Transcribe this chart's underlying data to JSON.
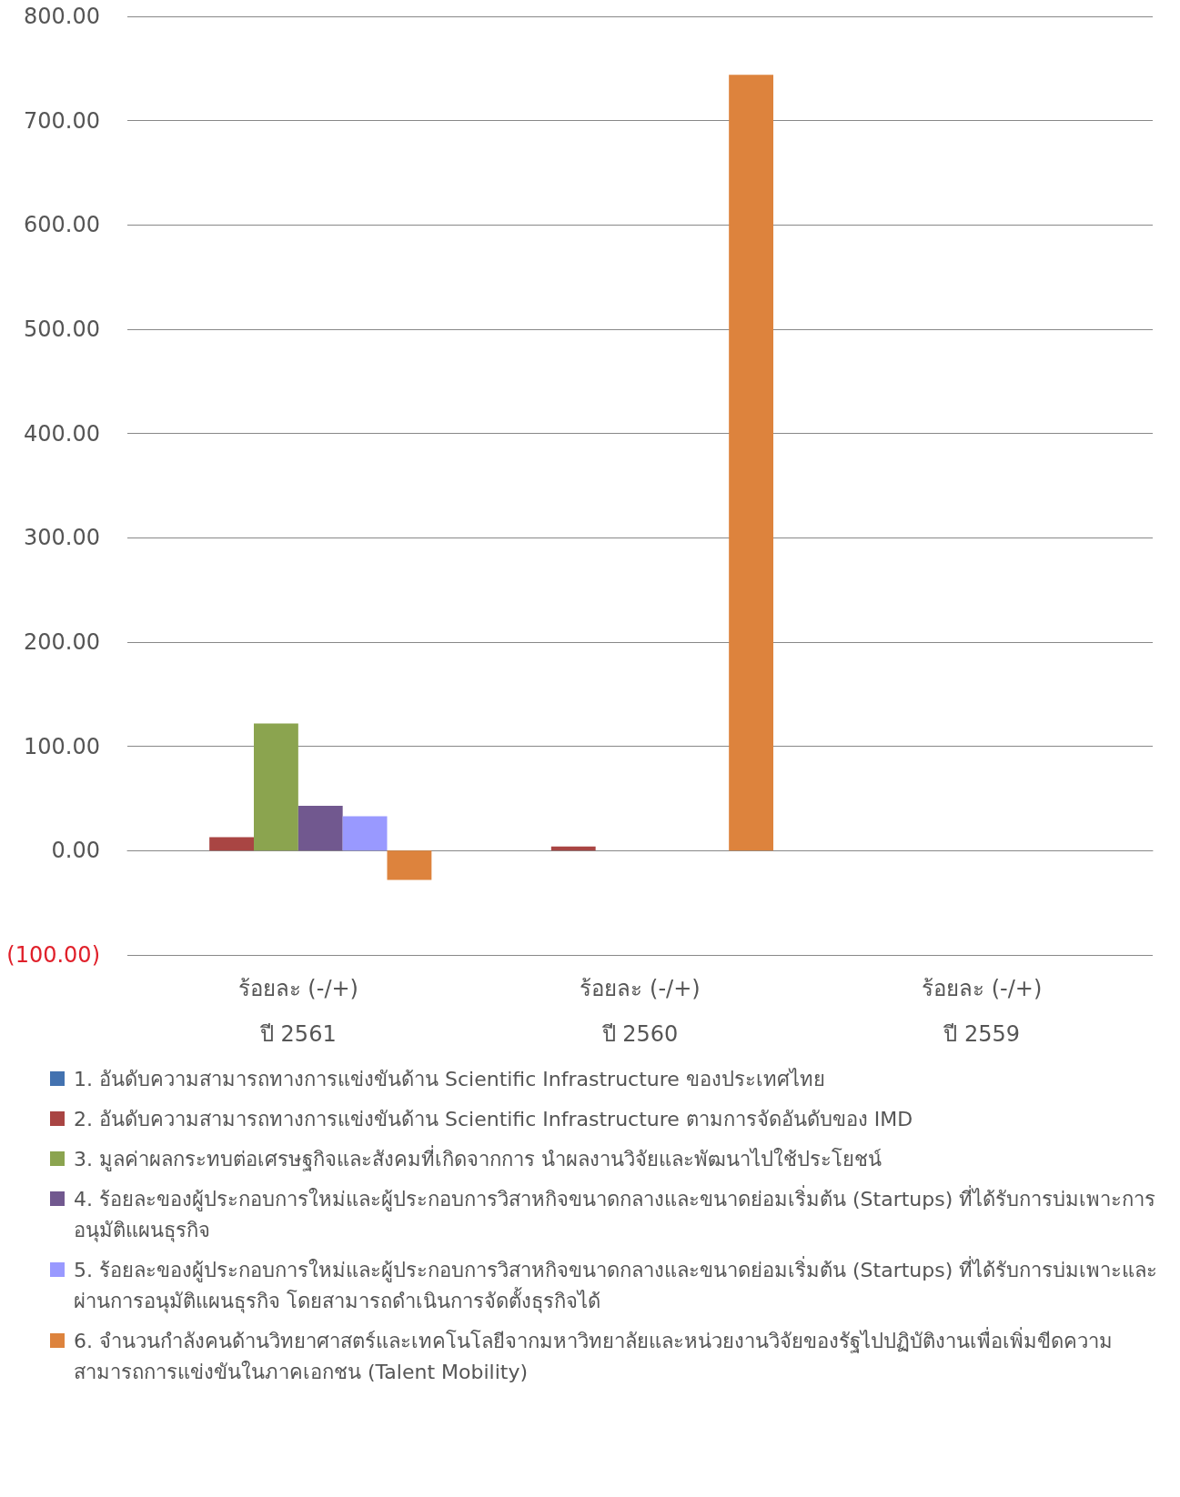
{
  "chart_data": {
    "type": "bar",
    "categories": [
      "ร้อยละ (-/+)\nปี 2561",
      "ร้อยละ (-/+)\nปี 2560",
      "ร้อยละ (-/+)\nปี 2559"
    ],
    "series": [
      {
        "name": "1. อันดับความสามารถทางการแข่งขันด้าน Scientific Infrastructure ของประเทศไทย",
        "color": "#4372b0",
        "values": [
          null,
          null,
          null
        ]
      },
      {
        "name": "2. อันดับความสามารถทางการแข่งขันด้าน Scientific Infrastructure ตามการจัดอันดับของ IMD",
        "color": "#a94543",
        "values": [
          13,
          4,
          null
        ]
      },
      {
        "name": "3. มูลค่าผลกระทบต่อเศรษฐกิจและสังคมที่เกิดจากการ นำผลงานวิจัยและพัฒนาไปใช้ประโยชน์",
        "color": "#8ba44f",
        "values": [
          122,
          null,
          null
        ]
      },
      {
        "name": "4. ร้อยละของผู้ประกอบการใหม่และผู้ประกอบการวิสาหกิจขนาดกลางและขนาดย่อมเริ่มต้น (Startups) ที่ได้รับการบ่มเพาะการอนุมัติแผนธุรกิจ",
        "color": "#71588f",
        "values": [
          43,
          null,
          null
        ]
      },
      {
        "name": "5. ร้อยละของผู้ประกอบการใหม่และผู้ประกอบการวิสาหกิจขนาดกลางและขนาดย่อมเริ่มต้น (Startups) ที่ได้รับการบ่มเพาะและผ่านการอนุมัติแผนธุรกิจ โดยสามารถดำเนินการจัดตั้งธุรกิจได้",
        "color": "#9999ff",
        "values": [
          33,
          null,
          null
        ]
      },
      {
        "name": "6. จำนวนกำลังคนด้านวิทยาศาสตร์และเทคโนโลยีจากมหาวิทยาลัยและหน่วยงานวิจัยของรัฐไปปฏิบัติงานเพื่อเพิ่มขีดความสามารถการแข่งขันในภาคเอกชน (Talent Mobility)",
        "color": "#dd833d",
        "values": [
          -28,
          744,
          null
        ]
      }
    ],
    "ylim": [
      -100,
      800
    ],
    "yticks": [
      {
        "value": -100,
        "label": "(100.00)"
      },
      {
        "value": 0,
        "label": "0.00"
      },
      {
        "value": 100,
        "label": "100.00"
      },
      {
        "value": 200,
        "label": "200.00"
      },
      {
        "value": 300,
        "label": "300.00"
      },
      {
        "value": 400,
        "label": "400.00"
      },
      {
        "value": 500,
        "label": "500.00"
      },
      {
        "value": 600,
        "label": "600.00"
      },
      {
        "value": 700,
        "label": "700.00"
      },
      {
        "value": 800,
        "label": "800.00"
      }
    ],
    "grid": "y",
    "legend": "bottom"
  }
}
